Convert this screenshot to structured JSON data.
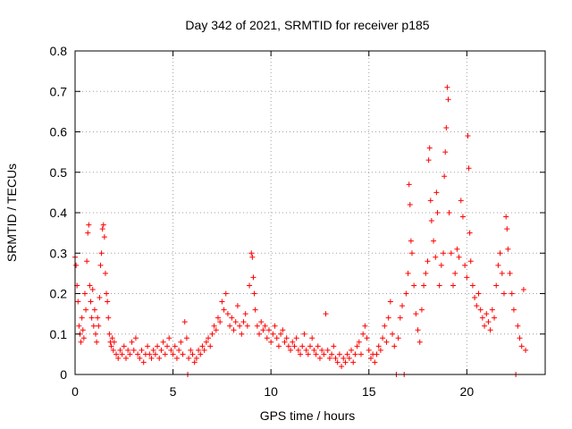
{
  "chart_data": {
    "type": "scatter",
    "title": "Day 342 of 2021, SRMTID for receiver p185",
    "xlabel": "GPS time / hours",
    "ylabel": "SRMTID / TECUs",
    "xlim": [
      0,
      24
    ],
    "ylim": [
      0,
      0.8
    ],
    "x_ticks": [
      0,
      5,
      10,
      15,
      20
    ],
    "x_tick_labels": [
      "0",
      "5",
      "10",
      "15",
      "20"
    ],
    "y_ticks": [
      0,
      0.1,
      0.2,
      0.3,
      0.4,
      0.5,
      0.6,
      0.7,
      0.8
    ],
    "y_tick_labels": [
      "0",
      "0.1",
      "0.2",
      "0.3",
      "0.4",
      "0.5",
      "0.6",
      "0.7",
      "0.8"
    ],
    "grid": true,
    "marker": "plus",
    "color": "#ff0000",
    "series": [
      {
        "name": "SRMTID",
        "points": [
          [
            0.0,
            0.29
          ],
          [
            0.05,
            0.27
          ],
          [
            0.1,
            0.22
          ],
          [
            0.15,
            0.18
          ],
          [
            0.2,
            0.12
          ],
          [
            0.25,
            0.1
          ],
          [
            0.3,
            0.08
          ],
          [
            0.35,
            0.14
          ],
          [
            0.4,
            0.11
          ],
          [
            0.45,
            0.09
          ],
          [
            0.5,
            0.2
          ],
          [
            0.55,
            0.16
          ],
          [
            0.6,
            0.28
          ],
          [
            0.65,
            0.35
          ],
          [
            0.7,
            0.37
          ],
          [
            0.75,
            0.22
          ],
          [
            0.8,
            0.18
          ],
          [
            0.85,
            0.14
          ],
          [
            0.9,
            0.21
          ],
          [
            0.95,
            0.12
          ],
          [
            1.0,
            0.16
          ],
          [
            1.05,
            0.1
          ],
          [
            1.1,
            0.08
          ],
          [
            1.15,
            0.14
          ],
          [
            1.2,
            0.12
          ],
          [
            1.25,
            0.19
          ],
          [
            1.3,
            0.27
          ],
          [
            1.35,
            0.3
          ],
          [
            1.4,
            0.36
          ],
          [
            1.45,
            0.37
          ],
          [
            1.5,
            0.34
          ],
          [
            1.55,
            0.25
          ],
          [
            1.6,
            0.2
          ],
          [
            1.65,
            0.18
          ],
          [
            1.7,
            0.14
          ],
          [
            1.75,
            0.1
          ],
          [
            1.8,
            0.08
          ],
          [
            1.85,
            0.07
          ],
          [
            1.9,
            0.09
          ],
          [
            1.95,
            0.06
          ],
          [
            2.0,
            0.08
          ],
          [
            2.1,
            0.05
          ],
          [
            2.2,
            0.04
          ],
          [
            2.3,
            0.06
          ],
          [
            2.4,
            0.05
          ],
          [
            2.5,
            0.07
          ],
          [
            2.6,
            0.04
          ],
          [
            2.7,
            0.06
          ],
          [
            2.8,
            0.05
          ],
          [
            2.9,
            0.08
          ],
          [
            3.0,
            0.06
          ],
          [
            3.1,
            0.09
          ],
          [
            3.2,
            0.05
          ],
          [
            3.3,
            0.04
          ],
          [
            3.4,
            0.06
          ],
          [
            3.5,
            0.03
          ],
          [
            3.6,
            0.05
          ],
          [
            3.7,
            0.07
          ],
          [
            3.8,
            0.05
          ],
          [
            3.9,
            0.04
          ],
          [
            4.0,
            0.06
          ],
          [
            4.1,
            0.05
          ],
          [
            4.2,
            0.07
          ],
          [
            4.3,
            0.04
          ],
          [
            4.4,
            0.06
          ],
          [
            4.5,
            0.08
          ],
          [
            4.6,
            0.05
          ],
          [
            4.7,
            0.07
          ],
          [
            4.8,
            0.09
          ],
          [
            4.9,
            0.06
          ],
          [
            5.0,
            0.05
          ],
          [
            5.1,
            0.07
          ],
          [
            5.2,
            0.04
          ],
          [
            5.3,
            0.06
          ],
          [
            5.4,
            0.08
          ],
          [
            5.5,
            0.05
          ],
          [
            5.6,
            0.13
          ],
          [
            5.7,
            0.09
          ],
          [
            5.75,
            0.0
          ],
          [
            5.8,
            0.04
          ],
          [
            5.9,
            0.06
          ],
          [
            6.0,
            0.05
          ],
          [
            6.1,
            0.03
          ],
          [
            6.2,
            0.04
          ],
          [
            6.3,
            0.06
          ],
          [
            6.4,
            0.05
          ],
          [
            6.5,
            0.07
          ],
          [
            6.6,
            0.06
          ],
          [
            6.7,
            0.08
          ],
          [
            6.8,
            0.09
          ],
          [
            6.9,
            0.07
          ],
          [
            7.0,
            0.1
          ],
          [
            7.1,
            0.12
          ],
          [
            7.2,
            0.11
          ],
          [
            7.3,
            0.14
          ],
          [
            7.4,
            0.13
          ],
          [
            7.5,
            0.18
          ],
          [
            7.6,
            0.16
          ],
          [
            7.7,
            0.2
          ],
          [
            7.8,
            0.15
          ],
          [
            7.9,
            0.12
          ],
          [
            8.0,
            0.14
          ],
          [
            8.1,
            0.11
          ],
          [
            8.2,
            0.13
          ],
          [
            8.3,
            0.17
          ],
          [
            8.4,
            0.12
          ],
          [
            8.5,
            0.1
          ],
          [
            8.6,
            0.13
          ],
          [
            8.7,
            0.15
          ],
          [
            8.8,
            0.12
          ],
          [
            8.9,
            0.22
          ],
          [
            9.0,
            0.3
          ],
          [
            9.05,
            0.29
          ],
          [
            9.1,
            0.24
          ],
          [
            9.15,
            0.2
          ],
          [
            9.2,
            0.16
          ],
          [
            9.3,
            0.12
          ],
          [
            9.4,
            0.1
          ],
          [
            9.5,
            0.13
          ],
          [
            9.6,
            0.11
          ],
          [
            9.7,
            0.12
          ],
          [
            9.8,
            0.09
          ],
          [
            9.9,
            0.11
          ],
          [
            10.0,
            0.08
          ],
          [
            10.1,
            0.1
          ],
          [
            10.2,
            0.12
          ],
          [
            10.3,
            0.09
          ],
          [
            10.4,
            0.07
          ],
          [
            10.5,
            0.1
          ],
          [
            10.6,
            0.11
          ],
          [
            10.7,
            0.08
          ],
          [
            10.8,
            0.09
          ],
          [
            10.9,
            0.07
          ],
          [
            11.0,
            0.06
          ],
          [
            11.1,
            0.08
          ],
          [
            11.2,
            0.07
          ],
          [
            11.3,
            0.09
          ],
          [
            11.4,
            0.06
          ],
          [
            11.5,
            0.05
          ],
          [
            11.6,
            0.07
          ],
          [
            11.7,
            0.1
          ],
          [
            11.8,
            0.06
          ],
          [
            11.9,
            0.05
          ],
          [
            12.0,
            0.07
          ],
          [
            12.1,
            0.09
          ],
          [
            12.2,
            0.06
          ],
          [
            12.3,
            0.05
          ],
          [
            12.4,
            0.07
          ],
          [
            12.5,
            0.04
          ],
          [
            12.6,
            0.06
          ],
          [
            12.7,
            0.05
          ],
          [
            12.8,
            0.15
          ],
          [
            12.9,
            0.06
          ],
          [
            13.0,
            0.04
          ],
          [
            13.1,
            0.05
          ],
          [
            13.2,
            0.07
          ],
          [
            13.3,
            0.04
          ],
          [
            13.4,
            0.03
          ],
          [
            13.5,
            0.05
          ],
          [
            13.6,
            0.02
          ],
          [
            13.7,
            0.04
          ],
          [
            13.8,
            0.03
          ],
          [
            13.9,
            0.05
          ],
          [
            14.0,
            0.04
          ],
          [
            14.1,
            0.06
          ],
          [
            14.2,
            0.03
          ],
          [
            14.3,
            0.05
          ],
          [
            14.4,
            0.07
          ],
          [
            14.5,
            0.08
          ],
          [
            14.6,
            0.05
          ],
          [
            14.7,
            0.1
          ],
          [
            14.8,
            0.12
          ],
          [
            14.9,
            0.09
          ],
          [
            15.0,
            0.06
          ],
          [
            15.1,
            0.04
          ],
          [
            15.2,
            0.05
          ],
          [
            15.3,
            0.03
          ],
          [
            15.4,
            0.05
          ],
          [
            15.5,
            0.07
          ],
          [
            15.6,
            0.06
          ],
          [
            15.7,
            0.09
          ],
          [
            15.8,
            0.12
          ],
          [
            15.9,
            0.08
          ],
          [
            16.0,
            0.14
          ],
          [
            16.1,
            0.18
          ],
          [
            16.2,
            0.1
          ],
          [
            16.3,
            0.07
          ],
          [
            16.4,
            0.0
          ],
          [
            16.5,
            0.09
          ],
          [
            16.6,
            0.14
          ],
          [
            16.7,
            0.17
          ],
          [
            16.8,
            0.0
          ],
          [
            16.9,
            0.2
          ],
          [
            17.0,
            0.25
          ],
          [
            17.05,
            0.47
          ],
          [
            17.1,
            0.42
          ],
          [
            17.15,
            0.33
          ],
          [
            17.2,
            0.3
          ],
          [
            17.3,
            0.22
          ],
          [
            17.4,
            0.15
          ],
          [
            17.5,
            0.11
          ],
          [
            17.6,
            0.08
          ],
          [
            17.7,
            0.16
          ],
          [
            17.8,
            0.22
          ],
          [
            17.9,
            0.25
          ],
          [
            18.0,
            0.28
          ],
          [
            18.05,
            0.53
          ],
          [
            18.1,
            0.56
          ],
          [
            18.15,
            0.43
          ],
          [
            18.2,
            0.38
          ],
          [
            18.3,
            0.33
          ],
          [
            18.4,
            0.29
          ],
          [
            18.45,
            0.45
          ],
          [
            18.5,
            0.4
          ],
          [
            18.6,
            0.22
          ],
          [
            18.7,
            0.27
          ],
          [
            18.8,
            0.3
          ],
          [
            18.85,
            0.49
          ],
          [
            18.9,
            0.55
          ],
          [
            18.95,
            0.61
          ],
          [
            19.0,
            0.71
          ],
          [
            19.05,
            0.68
          ],
          [
            19.1,
            0.4
          ],
          [
            19.2,
            0.3
          ],
          [
            19.3,
            0.22
          ],
          [
            19.4,
            0.25
          ],
          [
            19.5,
            0.31
          ],
          [
            19.6,
            0.29
          ],
          [
            19.7,
            0.43
          ],
          [
            19.8,
            0.39
          ],
          [
            19.9,
            0.27
          ],
          [
            20.0,
            0.24
          ],
          [
            20.05,
            0.59
          ],
          [
            20.1,
            0.51
          ],
          [
            20.15,
            0.35
          ],
          [
            20.2,
            0.28
          ],
          [
            20.3,
            0.22
          ],
          [
            20.4,
            0.19
          ],
          [
            20.5,
            0.17
          ],
          [
            20.6,
            0.2
          ],
          [
            20.7,
            0.16
          ],
          [
            20.8,
            0.14
          ],
          [
            20.9,
            0.12
          ],
          [
            21.0,
            0.15
          ],
          [
            21.1,
            0.13
          ],
          [
            21.2,
            0.11
          ],
          [
            21.3,
            0.16
          ],
          [
            21.4,
            0.14
          ],
          [
            21.5,
            0.22
          ],
          [
            21.6,
            0.27
          ],
          [
            21.7,
            0.3
          ],
          [
            21.8,
            0.25
          ],
          [
            21.9,
            0.2
          ],
          [
            22.0,
            0.39
          ],
          [
            22.05,
            0.36
          ],
          [
            22.1,
            0.31
          ],
          [
            22.2,
            0.25
          ],
          [
            22.3,
            0.2
          ],
          [
            22.4,
            0.16
          ],
          [
            22.5,
            0.0
          ],
          [
            22.6,
            0.12
          ],
          [
            22.7,
            0.09
          ],
          [
            22.8,
            0.07
          ],
          [
            22.9,
            0.21
          ],
          [
            23.0,
            0.06
          ]
        ]
      }
    ]
  }
}
